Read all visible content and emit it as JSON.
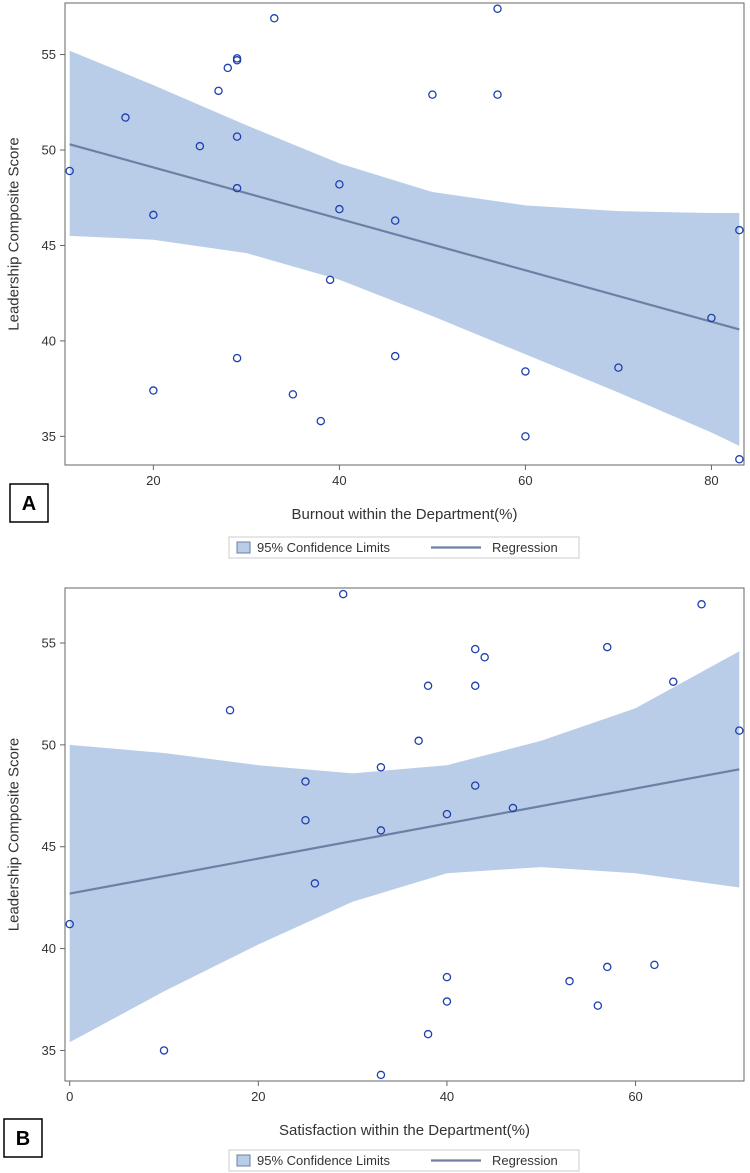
{
  "colors": {
    "band": "#b9cde8",
    "line": "#6d7fa3",
    "marker": "#1f3fae",
    "axis": "#666666",
    "text": "#333333"
  },
  "chart_data": [
    {
      "type": "scatter",
      "panel_letter": "A",
      "title": "",
      "xlabel": "Burnout within the Department(%)",
      "ylabel": "Leadership Composite Score",
      "xlim": [
        10.5,
        83.5
      ],
      "ylim": [
        33.5,
        57.7
      ],
      "xticks": [
        20,
        40,
        60,
        80
      ],
      "yticks": [
        35,
        40,
        45,
        50,
        55
      ],
      "points": [
        {
          "x": 11,
          "y": 48.9
        },
        {
          "x": 17,
          "y": 51.7
        },
        {
          "x": 20,
          "y": 46.6
        },
        {
          "x": 20,
          "y": 37.4
        },
        {
          "x": 25,
          "y": 50.2
        },
        {
          "x": 27,
          "y": 53.1
        },
        {
          "x": 28,
          "y": 54.3
        },
        {
          "x": 29,
          "y": 54.7
        },
        {
          "x": 29,
          "y": 54.8
        },
        {
          "x": 29,
          "y": 50.7
        },
        {
          "x": 29,
          "y": 48.0
        },
        {
          "x": 29,
          "y": 39.1
        },
        {
          "x": 33,
          "y": 56.9
        },
        {
          "x": 35,
          "y": 37.2
        },
        {
          "x": 38,
          "y": 35.8
        },
        {
          "x": 39,
          "y": 43.2
        },
        {
          "x": 40,
          "y": 48.2
        },
        {
          "x": 40,
          "y": 46.9
        },
        {
          "x": 46,
          "y": 46.3
        },
        {
          "x": 46,
          "y": 39.2
        },
        {
          "x": 50,
          "y": 52.9
        },
        {
          "x": 57,
          "y": 57.4
        },
        {
          "x": 57,
          "y": 52.9
        },
        {
          "x": 60,
          "y": 38.4
        },
        {
          "x": 60,
          "y": 35.0
        },
        {
          "x": 70,
          "y": 38.6
        },
        {
          "x": 80,
          "y": 41.2
        },
        {
          "x": 83,
          "y": 45.8
        },
        {
          "x": 83,
          "y": 33.8
        }
      ],
      "regression": {
        "x": [
          11,
          83
        ],
        "y": [
          50.3,
          40.6
        ]
      },
      "confidence_band": {
        "x": [
          11,
          20,
          30,
          40,
          50,
          60,
          70,
          80,
          83
        ],
        "lower": [
          45.5,
          45.3,
          44.6,
          43.2,
          41.3,
          39.3,
          37.3,
          35.2,
          34.5
        ],
        "upper": [
          55.2,
          53.4,
          51.3,
          49.3,
          47.8,
          47.1,
          46.8,
          46.7,
          46.7
        ]
      },
      "legend": {
        "band_label": "95% Confidence Limits",
        "line_label": "Regression",
        "position": "bottom"
      }
    },
    {
      "type": "scatter",
      "panel_letter": "B",
      "title": "",
      "xlabel": "Satisfaction within the Department(%)",
      "ylabel": "Leadership Composite Score",
      "xlim": [
        -0.5,
        71.5
      ],
      "ylim": [
        33.5,
        57.7
      ],
      "xticks": [
        0,
        20,
        40,
        60
      ],
      "yticks": [
        35,
        40,
        45,
        50,
        55
      ],
      "points": [
        {
          "x": 0,
          "y": 41.2
        },
        {
          "x": 10,
          "y": 35.0
        },
        {
          "x": 17,
          "y": 51.7
        },
        {
          "x": 25,
          "y": 48.2
        },
        {
          "x": 25,
          "y": 46.3
        },
        {
          "x": 26,
          "y": 43.2
        },
        {
          "x": 29,
          "y": 57.4
        },
        {
          "x": 33,
          "y": 48.9
        },
        {
          "x": 33,
          "y": 45.8
        },
        {
          "x": 33,
          "y": 33.8
        },
        {
          "x": 37,
          "y": 50.2
        },
        {
          "x": 38,
          "y": 52.9
        },
        {
          "x": 38,
          "y": 35.8
        },
        {
          "x": 40,
          "y": 46.6
        },
        {
          "x": 40,
          "y": 38.6
        },
        {
          "x": 40,
          "y": 37.4
        },
        {
          "x": 43,
          "y": 54.7
        },
        {
          "x": 43,
          "y": 52.9
        },
        {
          "x": 43,
          "y": 48.0
        },
        {
          "x": 44,
          "y": 54.3
        },
        {
          "x": 47,
          "y": 46.9
        },
        {
          "x": 53,
          "y": 38.4
        },
        {
          "x": 56,
          "y": 37.2
        },
        {
          "x": 57,
          "y": 54.8
        },
        {
          "x": 57,
          "y": 39.1
        },
        {
          "x": 62,
          "y": 39.2
        },
        {
          "x": 64,
          "y": 53.1
        },
        {
          "x": 67,
          "y": 56.9
        },
        {
          "x": 71,
          "y": 50.7
        }
      ],
      "regression": {
        "x": [
          0,
          71
        ],
        "y": [
          42.7,
          48.8
        ]
      },
      "confidence_band": {
        "x": [
          0,
          10,
          20,
          30,
          40,
          50,
          60,
          71
        ],
        "lower": [
          35.4,
          37.9,
          40.2,
          42.3,
          43.7,
          44.0,
          43.7,
          43.0
        ],
        "upper": [
          50.0,
          49.6,
          49.0,
          48.6,
          49.0,
          50.2,
          51.8,
          54.6
        ]
      },
      "legend": {
        "band_label": "95% Confidence Limits",
        "line_label": "Regression",
        "position": "bottom"
      }
    }
  ]
}
